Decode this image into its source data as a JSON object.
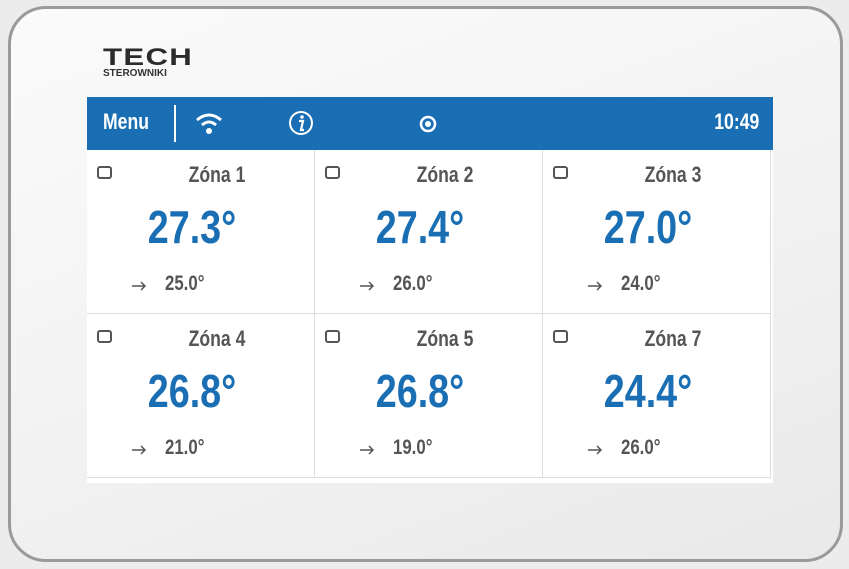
{
  "header": {
    "logo": "TECH",
    "logo_sub": "STEROWNIKI"
  },
  "status_bar": {
    "menu": "Menu",
    "time": "10:49"
  },
  "zones": [
    {
      "name": "Zóna 1",
      "current": "27.3°",
      "set": "25.0°"
    },
    {
      "name": "Zóna 2",
      "current": "27.4°",
      "set": "26.0°"
    },
    {
      "name": "Zóna 3",
      "current": "27.0°",
      "set": "24.0°"
    },
    {
      "name": "Zóna 4",
      "current": "26.8°",
      "set": "21.0°"
    },
    {
      "name": "Zóna 5",
      "current": "26.8°",
      "set": "19.0°"
    },
    {
      "name": "Zóna 7",
      "current": "24.4°",
      "set": "26.0°"
    }
  ]
}
